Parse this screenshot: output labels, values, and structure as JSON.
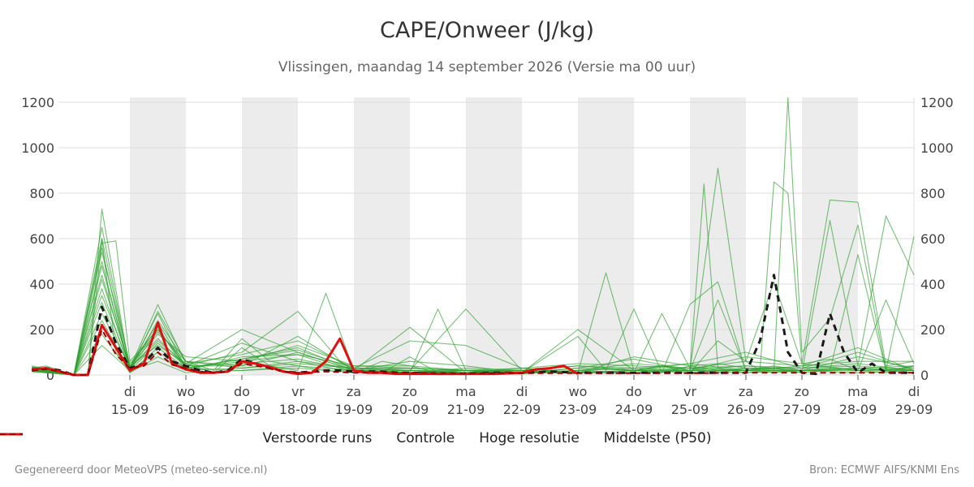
{
  "title": "CAPE/Onweer (J/kg)",
  "subtitle": "Vlissingen, maandag 14 september 2026 (Versie ma 00 uur)",
  "footer_left": "Gegenereerd door MeteoVPS (meteo-service.nl)",
  "footer_right": "Bron: ECMWF AIFS/KNMI Ens",
  "colors": {
    "ensemble": "#2ca02c",
    "control": "#1a1a1a",
    "hires": "#e01010",
    "median": "#a00000",
    "weekend_band": "#ececec",
    "grid": "#dddddd"
  },
  "legend": [
    {
      "label": "Verstoorde runs",
      "style": "ensemble"
    },
    {
      "label": "Controle",
      "style": "control"
    },
    {
      "label": "Hoge resolutie",
      "style": "hires"
    },
    {
      "label": "Middelste (P50)",
      "style": "median"
    }
  ],
  "chart_data": {
    "type": "line",
    "x_unit": "days since 14-09 00 UTC",
    "xlim": [
      -0.75,
      15
    ],
    "ylim": [
      0,
      1220
    ],
    "yticks": [
      0,
      200,
      400,
      600,
      800,
      1000,
      1200
    ],
    "grid": true,
    "legend_position": "bottom",
    "xticks": [
      {
        "x": 1,
        "day": "di",
        "date": "15-09"
      },
      {
        "x": 2,
        "day": "wo",
        "date": "16-09"
      },
      {
        "x": 3,
        "day": "do",
        "date": "17-09"
      },
      {
        "x": 4,
        "day": "vr",
        "date": "18-09"
      },
      {
        "x": 5,
        "day": "za",
        "date": "19-09"
      },
      {
        "x": 6,
        "day": "zo",
        "date": "20-09"
      },
      {
        "x": 7,
        "day": "ma",
        "date": "21-09"
      },
      {
        "x": 8,
        "day": "di",
        "date": "22-09"
      },
      {
        "x": 9,
        "day": "wo",
        "date": "23-09"
      },
      {
        "x": 10,
        "day": "do",
        "date": "24-09"
      },
      {
        "x": 11,
        "day": "vr",
        "date": "25-09"
      },
      {
        "x": 12,
        "day": "za",
        "date": "26-09"
      },
      {
        "x": 13,
        "day": "zo",
        "date": "27-09"
      },
      {
        "x": 14,
        "day": "ma",
        "date": "28-09"
      },
      {
        "x": 15,
        "day": "di",
        "date": "29-09"
      }
    ],
    "shaded_bands": [
      [
        1,
        2
      ],
      [
        3,
        4
      ],
      [
        5,
        6
      ],
      [
        7,
        8
      ],
      [
        9,
        10
      ],
      [
        11,
        12
      ],
      [
        13,
        14
      ]
    ],
    "series": [
      {
        "name": "Controle",
        "role": "control",
        "x": [
          -0.75,
          -0.5,
          -0.25,
          0,
          0.25,
          0.5,
          0.75,
          1,
          1.25,
          1.5,
          1.75,
          2,
          2.25,
          2.5,
          2.75,
          3,
          3.25,
          3.5,
          3.75,
          4,
          4.25,
          4.5,
          4.75,
          5,
          5.25,
          5.5,
          5.75,
          6,
          6.5,
          7,
          7.5,
          8,
          8.5,
          9,
          9.5,
          10,
          10.5,
          11,
          11.5,
          12,
          12.25,
          12.5,
          12.75,
          13,
          13.25,
          13.5,
          13.75,
          14,
          14.25,
          14.5,
          14.75,
          15
        ],
        "y": [
          20,
          30,
          20,
          0,
          0,
          300,
          140,
          30,
          50,
          120,
          60,
          40,
          20,
          10,
          20,
          70,
          50,
          30,
          15,
          10,
          15,
          20,
          20,
          15,
          15,
          15,
          10,
          10,
          5,
          5,
          10,
          10,
          15,
          10,
          10,
          10,
          10,
          10,
          10,
          10,
          150,
          440,
          100,
          10,
          5,
          270,
          100,
          10,
          50,
          10,
          10,
          10
        ]
      },
      {
        "name": "Hoge resolutie",
        "role": "hires",
        "x": [
          -0.75,
          -0.5,
          -0.25,
          0,
          0.25,
          0.5,
          0.75,
          1,
          1.25,
          1.5,
          1.75,
          2,
          2.25,
          2.5,
          2.75,
          3,
          3.25,
          3.5,
          3.75,
          4,
          4.25,
          4.5,
          4.75,
          5,
          5.25,
          5.5,
          5.75,
          6,
          6.25,
          6.5,
          7,
          7.5,
          8,
          8.25,
          8.5,
          8.75,
          9
        ],
        "y": [
          25,
          30,
          15,
          0,
          0,
          220,
          120,
          20,
          50,
          230,
          50,
          25,
          10,
          10,
          15,
          60,
          50,
          35,
          15,
          5,
          10,
          60,
          160,
          20,
          10,
          10,
          5,
          5,
          5,
          5,
          5,
          5,
          10,
          25,
          30,
          40,
          5
        ]
      },
      {
        "name": "Middelste (P50)",
        "role": "median",
        "x": [
          -0.75,
          -0.5,
          -0.25,
          0,
          0.25,
          0.5,
          0.75,
          1,
          1.25,
          1.5,
          1.75,
          2,
          2.25,
          2.5,
          2.75,
          3,
          3.25,
          3.5,
          3.75,
          4,
          4.5,
          5,
          5.5,
          6,
          7,
          8,
          9,
          10,
          11,
          12,
          13,
          14,
          15
        ],
        "y": [
          20,
          25,
          15,
          0,
          0,
          200,
          90,
          30,
          40,
          100,
          45,
          30,
          15,
          10,
          15,
          50,
          40,
          30,
          15,
          10,
          15,
          10,
          10,
          10,
          8,
          8,
          8,
          8,
          8,
          10,
          10,
          10,
          10
        ]
      }
    ],
    "ensemble_runs": [
      {
        "x": [
          -0.75,
          -0.5,
          0,
          0.25,
          0.5,
          1,
          1.5,
          2,
          2.5,
          3,
          3.5,
          4,
          4.5,
          5,
          5.5,
          6,
          6.5,
          7,
          7.5,
          8,
          8.5,
          9,
          9.5,
          10,
          10.5,
          11,
          11.5,
          12,
          12.5,
          13,
          13.5,
          14,
          14.5,
          15
        ],
        "y": [
          30,
          40,
          0,
          5,
          730,
          20,
          280,
          60,
          20,
          160,
          60,
          40,
          20,
          10,
          60,
          40,
          10,
          20,
          10,
          5,
          20,
          10,
          30,
          20,
          10,
          40,
          20,
          20,
          40,
          20,
          30,
          20,
          10,
          40
        ]
      },
      {
        "x": [
          -0.75,
          -0.5,
          0,
          0.25,
          0.5,
          0.75,
          1,
          1.5,
          2,
          2.5,
          3,
          3.5,
          4,
          4.5,
          5,
          5.5,
          6,
          6.5,
          7,
          7.5,
          8,
          8.5,
          9,
          9.5,
          10,
          10.5,
          11,
          11.5,
          12,
          12.25,
          12.5,
          12.75,
          13,
          13.5,
          14,
          14.5,
          15
        ],
        "y": [
          20,
          30,
          0,
          0,
          600,
          100,
          30,
          150,
          50,
          10,
          120,
          40,
          20,
          360,
          20,
          10,
          80,
          10,
          10,
          20,
          5,
          20,
          10,
          450,
          20,
          40,
          10,
          150,
          60,
          20,
          850,
          800,
          50,
          770,
          760,
          40,
          60
        ]
      },
      {
        "x": [
          -0.75,
          0,
          0.5,
          0.75,
          1,
          1.5,
          2,
          3,
          4,
          5,
          6,
          7,
          8,
          9,
          10,
          10.5,
          11,
          11.5,
          12,
          12.5,
          12.75,
          13,
          13.5,
          14,
          14.5,
          15
        ],
        "y": [
          35,
          0,
          580,
          590,
          60,
          200,
          40,
          140,
          60,
          30,
          20,
          20,
          10,
          10,
          10,
          270,
          30,
          10,
          30,
          20,
          1220,
          100,
          250,
          660,
          20,
          40
        ]
      },
      {
        "x": [
          -0.75,
          0,
          0.5,
          1,
          1.5,
          2,
          3,
          4,
          5,
          6,
          7,
          8,
          9,
          10,
          11,
          11.25,
          11.5,
          12,
          12.5,
          13,
          13.5,
          14,
          14.5,
          15
        ],
        "y": [
          25,
          0,
          650,
          30,
          310,
          50,
          200,
          100,
          20,
          210,
          10,
          20,
          10,
          20,
          20,
          840,
          30,
          10,
          20,
          10,
          680,
          40,
          700,
          440
        ]
      },
      {
        "x": [
          -0.75,
          0,
          0.5,
          1,
          1.5,
          2,
          3,
          4,
          4.75,
          5,
          6,
          6.5,
          7,
          8,
          9,
          9.5,
          10,
          10.5,
          11,
          11.5,
          12,
          12.5,
          13,
          13.5,
          14,
          14.5,
          15
        ],
        "y": [
          30,
          0,
          500,
          20,
          200,
          40,
          100,
          280,
          60,
          20,
          10,
          290,
          20,
          10,
          170,
          20,
          290,
          10,
          310,
          410,
          20,
          10,
          20,
          20,
          530,
          20,
          610
        ]
      },
      {
        "x": [
          -0.75,
          0,
          0.5,
          1,
          1.5,
          2,
          3,
          4,
          5,
          6,
          7,
          8,
          9,
          10,
          10.5,
          11,
          11.5,
          12,
          12.5,
          13,
          13.5,
          14,
          14.5,
          15
        ],
        "y": [
          20,
          0,
          420,
          40,
          180,
          80,
          60,
          90,
          40,
          30,
          20,
          10,
          30,
          20,
          40,
          20,
          910,
          60,
          410,
          50,
          70,
          20,
          330,
          50
        ]
      },
      {
        "x": [
          -0.75,
          0,
          0.5,
          1,
          1.5,
          2,
          3,
          4,
          5,
          6,
          7,
          8,
          9,
          10,
          11,
          11.5,
          12,
          12.5,
          13,
          13.5,
          14,
          15
        ],
        "y": [
          15,
          0,
          560,
          10,
          120,
          30,
          70,
          110,
          30,
          20,
          10,
          5,
          20,
          10,
          20,
          330,
          20,
          30,
          10,
          20,
          30,
          20
        ]
      },
      {
        "x": [
          -0.75,
          0,
          0.5,
          1,
          1.5,
          2,
          3,
          4,
          5,
          6,
          7,
          8,
          9,
          10,
          11,
          11.5,
          12,
          13,
          14,
          15
        ],
        "y": [
          40,
          0,
          380,
          20,
          240,
          60,
          30,
          50,
          30,
          150,
          130,
          30,
          10,
          80,
          40,
          50,
          30,
          20,
          80,
          30
        ]
      },
      {
        "x": [
          -0.75,
          0,
          0.5,
          1,
          1.5,
          2,
          3,
          4,
          5,
          6,
          7,
          8,
          9,
          10,
          11,
          12,
          13,
          14,
          15
        ],
        "y": [
          20,
          0,
          480,
          30,
          160,
          40,
          50,
          70,
          20,
          20,
          290,
          20,
          10,
          20,
          30,
          40,
          30,
          40,
          20
        ]
      },
      {
        "x": [
          -0.75,
          0,
          0.5,
          1,
          1.5,
          2,
          3,
          4,
          5,
          6,
          7,
          8,
          9,
          10,
          11,
          12,
          13,
          14,
          15
        ],
        "y": [
          30,
          0,
          320,
          20,
          140,
          40,
          40,
          170,
          20,
          10,
          20,
          10,
          200,
          20,
          50,
          20,
          20,
          30,
          40
        ]
      },
      {
        "x": [
          -0.75,
          0,
          0.5,
          1,
          1.5,
          2,
          3,
          4,
          5,
          6,
          7,
          8,
          9,
          10,
          11,
          12,
          13,
          14,
          15
        ],
        "y": [
          25,
          0,
          270,
          40,
          210,
          20,
          80,
          90,
          10,
          10,
          20,
          10,
          30,
          70,
          20,
          80,
          50,
          20,
          30
        ]
      },
      {
        "x": [
          -0.75,
          0,
          0.5,
          1,
          1.5,
          2,
          3,
          4,
          5,
          6,
          7,
          8,
          9,
          10,
          11,
          12,
          13,
          14,
          15
        ],
        "y": [
          20,
          0,
          440,
          30,
          270,
          30,
          60,
          130,
          40,
          40,
          20,
          30,
          50,
          40,
          30,
          60,
          40,
          120,
          20
        ]
      },
      {
        "x": [
          -0.75,
          0,
          0.5,
          1,
          1.5,
          2,
          3,
          4,
          5,
          6,
          7,
          8,
          9,
          10,
          11,
          12,
          13,
          14,
          15
        ],
        "y": [
          30,
          0,
          180,
          10,
          80,
          20,
          30,
          60,
          10,
          20,
          10,
          10,
          20,
          30,
          20,
          40,
          20,
          30,
          10
        ]
      },
      {
        "x": [
          -0.75,
          0,
          0.5,
          1,
          1.5,
          2,
          3,
          4,
          5,
          6,
          7,
          8,
          9,
          10,
          11,
          12,
          13,
          14,
          15
        ],
        "y": [
          35,
          0,
          350,
          40,
          130,
          50,
          90,
          150,
          30,
          30,
          20,
          20,
          40,
          20,
          10,
          30,
          30,
          100,
          20
        ]
      },
      {
        "x": [
          -0.75,
          0,
          0.5,
          1,
          1.5,
          2,
          3,
          4,
          5,
          6,
          7,
          8,
          9,
          10,
          11,
          12,
          13,
          14,
          15
        ],
        "y": [
          15,
          0,
          240,
          20,
          100,
          30,
          20,
          40,
          20,
          10,
          30,
          20,
          10,
          20,
          20,
          20,
          20,
          20,
          20
        ]
      },
      {
        "x": [
          -0.75,
          0,
          0.5,
          1,
          1.5,
          2,
          3,
          4,
          5,
          6,
          7,
          8,
          9,
          10,
          11,
          12,
          13,
          14,
          15
        ],
        "y": [
          30,
          0,
          540,
          50,
          190,
          60,
          40,
          100,
          20,
          60,
          40,
          10,
          20,
          50,
          30,
          20,
          40,
          60,
          60
        ]
      },
      {
        "x": [
          -0.75,
          0,
          0.5,
          1,
          1.5,
          2,
          3,
          4,
          5,
          6,
          7,
          8,
          9,
          10,
          11,
          12,
          13,
          14,
          15
        ],
        "y": [
          25,
          0,
          130,
          20,
          60,
          10,
          20,
          30,
          10,
          20,
          10,
          30,
          10,
          10,
          20,
          10,
          20,
          10,
          20
        ]
      },
      {
        "x": [
          -0.75,
          0,
          0.5,
          1,
          1.5,
          2,
          3,
          4,
          5,
          6,
          7,
          8,
          9,
          10,
          11,
          12,
          13,
          14,
          15
        ],
        "y": [
          20,
          0,
          600,
          30,
          230,
          30,
          70,
          120,
          20,
          30,
          20,
          20,
          40,
          30,
          50,
          100,
          30,
          50,
          20
        ]
      }
    ]
  }
}
